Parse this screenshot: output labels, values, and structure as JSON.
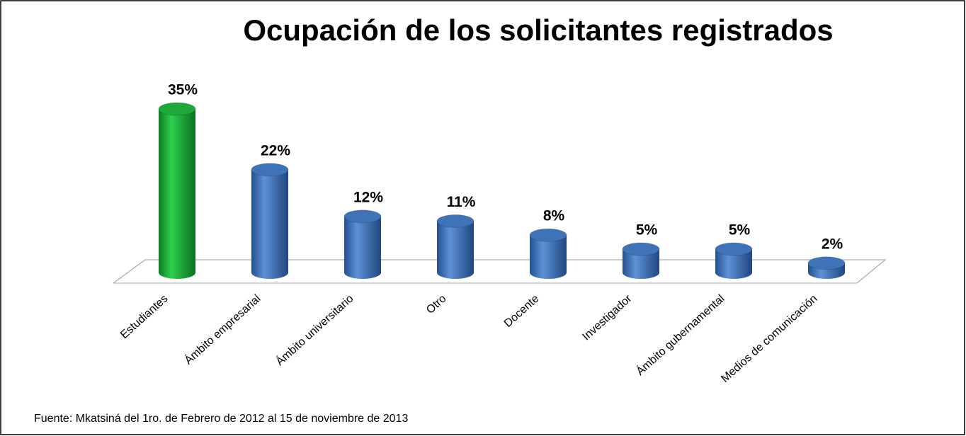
{
  "chart_data": {
    "type": "bar3d",
    "title": "Ocupación de los solicitantes registrados",
    "categories": [
      "Estudiantes",
      "Ámbito empresarial",
      "Ámbito universitario",
      "Otro",
      "Docente",
      "Investigador",
      "Ámbito gubernamental",
      "Medios de comunicación"
    ],
    "values": [
      35,
      22,
      12,
      11,
      8,
      5,
      5,
      2
    ],
    "value_labels": [
      "35%",
      "22%",
      "12%",
      "11%",
      "8%",
      "5%",
      "5%",
      "2%"
    ],
    "colors": [
      "#1fa83a",
      "#3f73b8",
      "#3f73b8",
      "#3f73b8",
      "#3f73b8",
      "#3f73b8",
      "#3f73b8",
      "#3f73b8"
    ],
    "note": "Fuente: Mkatsiná del  1ro. de Febrero de 2012 al 15 de noviembre de 2013"
  }
}
